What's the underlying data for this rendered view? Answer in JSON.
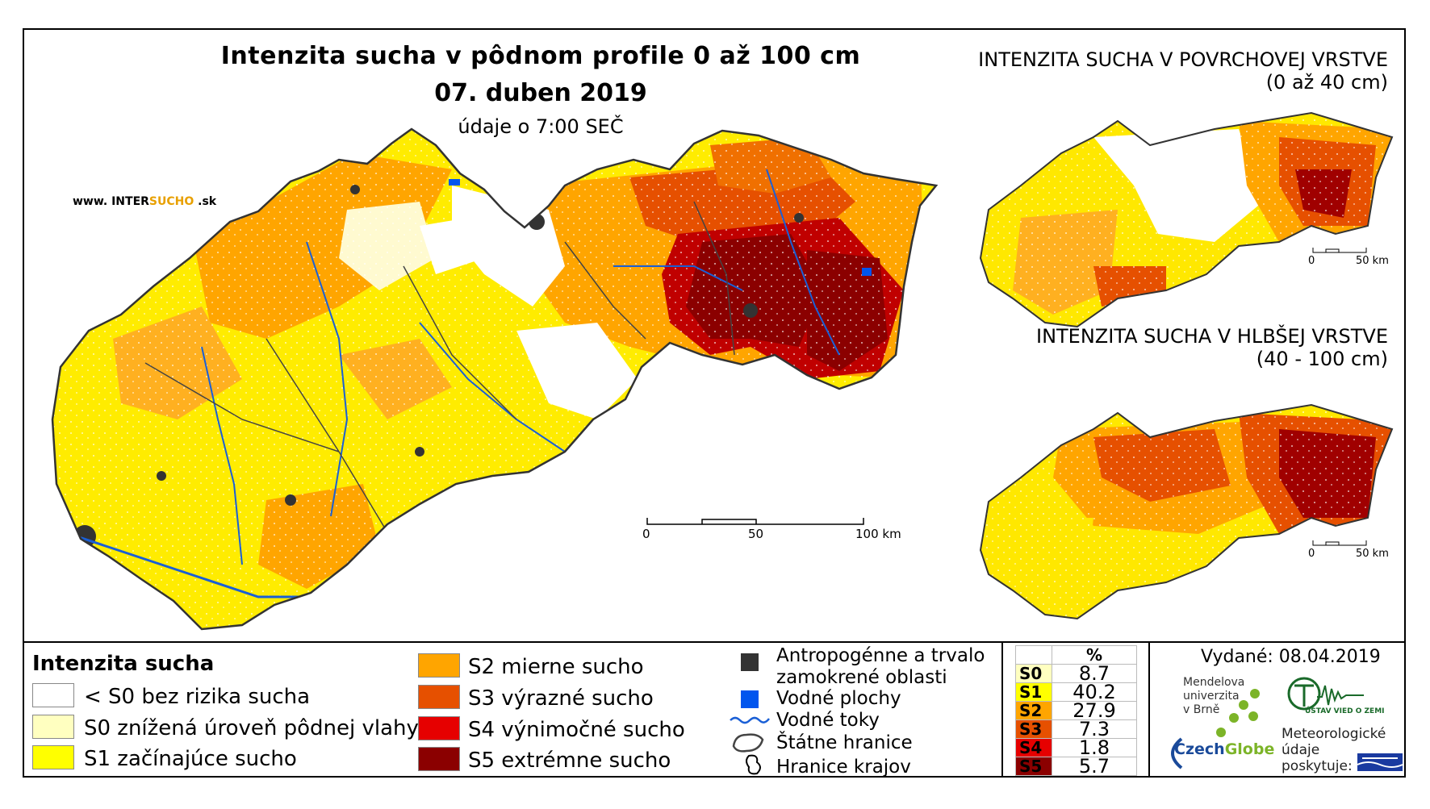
{
  "titles": {
    "main": "Intenzita sucha v pôdnom profile 0 až 100 cm",
    "date": "07. duben 2019",
    "time": "údaje o 7:00 SEČ",
    "surface_line1": "INTENZITA SUCHA V POVRCHOVEJ VRSTVE",
    "surface_line2": "(0 až 40 cm)",
    "deep_line1": "INTENZITA SUCHA V HLBŠEJ VRSTVE",
    "deep_line2": "(40 - 100 cm)"
  },
  "website": {
    "prefix": "www. INTER",
    "brand": "SUCHO",
    "suffix": " .sk"
  },
  "scale_main": {
    "t0": "0",
    "t1": "50",
    "t2": "100 km"
  },
  "scale_small": {
    "t0": "0",
    "t1": "50 km"
  },
  "legend": {
    "heading": "Intenzita sucha",
    "items": [
      {
        "label": "< S0 bez rizika sucha",
        "color": "#ffffff"
      },
      {
        "label": "S0 znížená úroveň pôdnej vlahy",
        "color": "#ffffc0"
      },
      {
        "label": "S1 začínajúce sucho",
        "color": "#ffff00"
      },
      {
        "label": "S2 mierne sucho",
        "color": "#ffa500"
      },
      {
        "label": "S3 výrazné sucho",
        "color": "#e65000"
      },
      {
        "label": "S4 výnimočné sucho",
        "color": "#e60000"
      },
      {
        "label": "S5 extrémne sucho",
        "color": "#8b0000"
      }
    ],
    "other": [
      {
        "label_1": "Antropogénne a trvalo",
        "label_2": "zamokrené oblasti",
        "icon": "dark-square-icon",
        "color": "#333333"
      },
      {
        "label": "Vodné plochy",
        "icon": "blue-square-icon",
        "color": "#0055ee"
      },
      {
        "label": "Vodné toky",
        "icon": "river-line-icon",
        "color": "#1a5fd6"
      },
      {
        "label": "Štátne hranice",
        "icon": "state-border-icon"
      },
      {
        "label": "Hranice krajov",
        "icon": "region-border-icon"
      }
    ]
  },
  "percent_table": {
    "header": "%",
    "rows": [
      {
        "class": "S0",
        "value": "8.7",
        "color": "#ffffc0"
      },
      {
        "class": "S1",
        "value": "40.2",
        "color": "#ffff00"
      },
      {
        "class": "S2",
        "value": "27.9",
        "color": "#ffa500"
      },
      {
        "class": "S3",
        "value": "7.3",
        "color": "#e65000"
      },
      {
        "class": "S4",
        "value": "1.8",
        "color": "#e60000"
      },
      {
        "class": "S5",
        "value": "5.7",
        "color": "#8b0000"
      }
    ]
  },
  "issued": "Vydané: 08.04.2019",
  "logos": {
    "mendel_1": "Mendelova",
    "mendel_2": "univerzita",
    "mendel_3": "v Brně",
    "czech_1": "Czech",
    "czech_2": "Globe",
    "uvz": "ÚSTAV VIED O ZEMI",
    "meteo_1": "Meteorologické",
    "meteo_2": "údaje",
    "meteo_3": "poskytuje:"
  }
}
